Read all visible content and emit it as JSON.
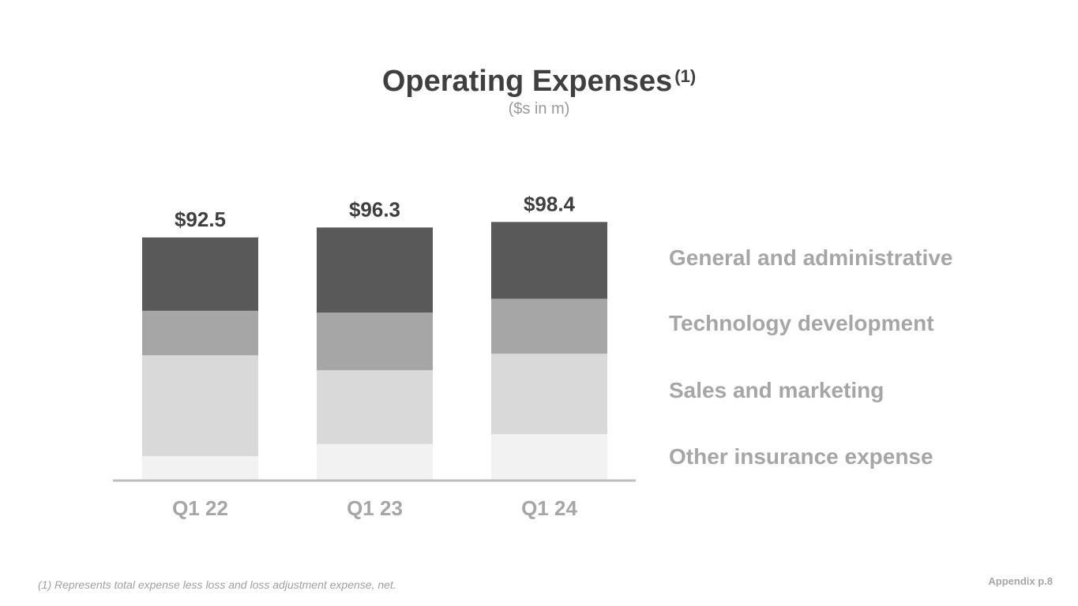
{
  "title": "Operating Expenses",
  "title_note": "(1)",
  "subtitle": "($s in m)",
  "chart_data": {
    "type": "bar",
    "stacked": true,
    "categories": [
      "Q1 22",
      "Q1 23",
      "Q1 24"
    ],
    "totals": [
      "$92.5",
      "$96.3",
      "$98.4"
    ],
    "total_values": [
      92.5,
      96.3,
      98.4
    ],
    "series": [
      {
        "name": "Other insurance expense",
        "values": [
          9.0,
          13.6,
          17.4
        ],
        "color": "#f2f2f2"
      },
      {
        "name": "Sales and marketing",
        "values": [
          38.5,
          28.2,
          30.7
        ],
        "color": "#d9d9d9"
      },
      {
        "name": "Technology development",
        "values": [
          17.0,
          22.0,
          21.0
        ],
        "color": "#a6a6a6"
      },
      {
        "name": "General and administrative",
        "values": [
          28.0,
          32.5,
          29.3
        ],
        "color": "#595959"
      }
    ],
    "legend_order": [
      "General and administrative",
      "Technology development",
      "Sales and marketing",
      "Other insurance expense"
    ],
    "legend_position": "right",
    "ylim": [
      0,
      100
    ],
    "grid": false,
    "axis_color": "#bfbfbf",
    "label_color": "#a6a6a6",
    "total_label_color": "#3f3f3f"
  },
  "footnote": "(1) Represents total expense less loss and loss adjustment expense, net.",
  "page_label": "Appendix p.8"
}
